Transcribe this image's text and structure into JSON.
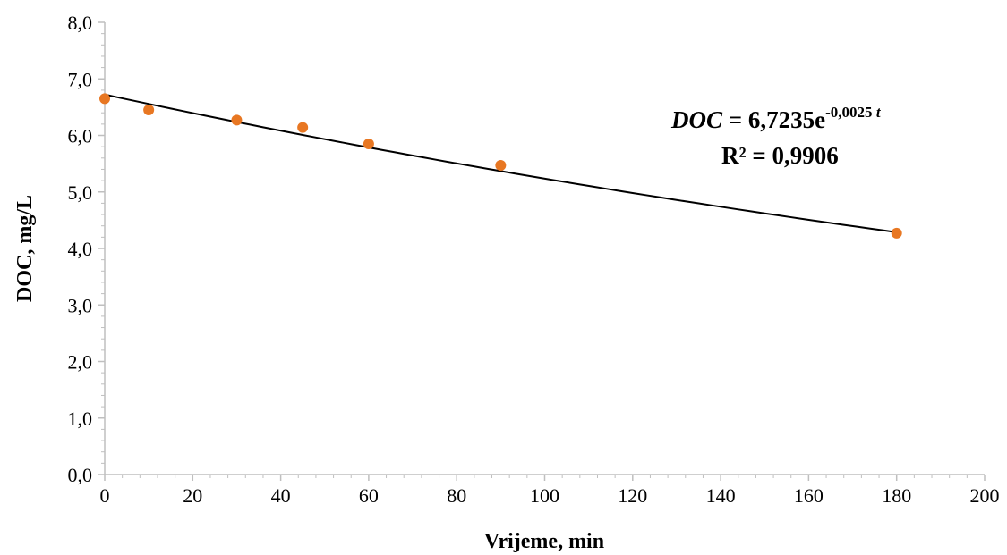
{
  "chart_data": {
    "type": "scatter",
    "xlabel": "Vrijeme, min",
    "ylabel": "DOC, mg/L",
    "xlim": [
      0,
      200
    ],
    "ylim": [
      0,
      8
    ],
    "x_ticks": [
      0,
      20,
      40,
      60,
      80,
      100,
      120,
      140,
      160,
      180,
      200
    ],
    "y_ticks": [
      0,
      1,
      2,
      3,
      4,
      5,
      6,
      7,
      8
    ],
    "x_tick_labels": [
      "0",
      "20",
      "40",
      "60",
      "80",
      "100",
      "120",
      "140",
      "160",
      "180",
      "200"
    ],
    "y_tick_labels": [
      "0,0",
      "1,0",
      "2,0",
      "3,0",
      "4,0",
      "5,0",
      "6,0",
      "7,0",
      "8,0"
    ],
    "series": [
      {
        "x": [
          0,
          10,
          30,
          45,
          60,
          90,
          180
        ],
        "y": [
          6.65,
          6.45,
          6.27,
          6.14,
          5.85,
          5.47,
          4.27
        ],
        "color": "#E87722"
      }
    ],
    "trendline": {
      "type": "exponential",
      "a": 6.7235,
      "b": -0.0025,
      "x_range": [
        0,
        180
      ],
      "color": "#000000",
      "equation": {
        "lhs": "DOC",
        "eq_sign": " = ",
        "coef": "6,7235e",
        "exp_num": "-0,0025 ",
        "exp_var": "t"
      },
      "r_squared": "R² = 0,9906"
    },
    "grid": false
  }
}
